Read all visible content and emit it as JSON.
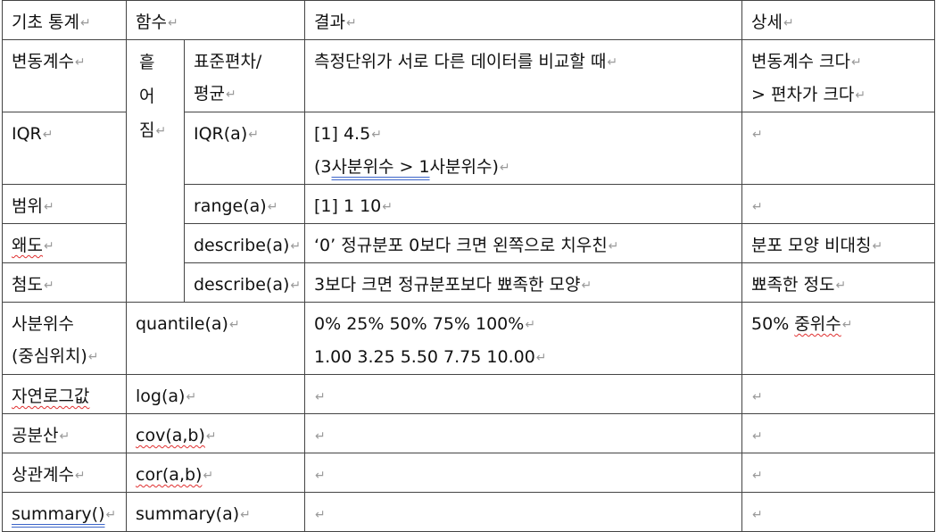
{
  "header": {
    "col_stat": "기초 통계",
    "col_func": "함수",
    "col_result": "결과",
    "col_detail": "상세"
  },
  "rows": {
    "cv": {
      "name": "변동계수",
      "func_line1": "표준편차/",
      "func_line2": "평균",
      "result": "측정단위가 서로 다른 데이터를 비교할 때",
      "detail_line1": "변동계수 크다",
      "detail_line2": "> 편차가 크다"
    },
    "spread_label": [
      "흩",
      "어",
      "짐"
    ],
    "iqr": {
      "name": "IQR",
      "func": "IQR(a)",
      "result_line1": "[1] 4.5",
      "result_line2_prefix": "(3",
      "result_line2_underlined": "사분위수 > 1",
      "result_line2_suffix": "사분위수)",
      "detail": ""
    },
    "range": {
      "name": "범위",
      "func": "range(a)",
      "result": "[1] 1 10",
      "detail": ""
    },
    "skew": {
      "name": "왜도",
      "func": "describe(a)",
      "result": "‘0’ 정규분포 0보다 크면 왼쪽으로 치우친",
      "detail": "분포 모양 비대칭"
    },
    "kurt": {
      "name": "첨도",
      "func": "describe(a)",
      "result": "3보다 크면 정규분포보다 뾰족한 모양",
      "detail": "뾰족한 정도"
    },
    "quantile": {
      "name_line1": "사분위수",
      "name_line2": "(중심위치)",
      "func": "quantile(a)",
      "result_line1": "0% 25% 50% 75% 100%",
      "result_line2": "1.00 3.25 5.50 7.75 10.00",
      "detail_prefix": "50% ",
      "detail_marked": "중위수"
    },
    "log": {
      "name": "자연로그값",
      "func": "log(a)",
      "result": "",
      "detail": ""
    },
    "cov": {
      "name": "공분산",
      "func": "cov(a,b)",
      "result": "",
      "detail": ""
    },
    "cor": {
      "name": "상관계수",
      "func": "cor(a,b)",
      "result": "",
      "detail": ""
    },
    "summary": {
      "name": "summary()",
      "func": "summary(a)",
      "result": "",
      "detail": ""
    }
  },
  "paragraph_mark": "↵"
}
